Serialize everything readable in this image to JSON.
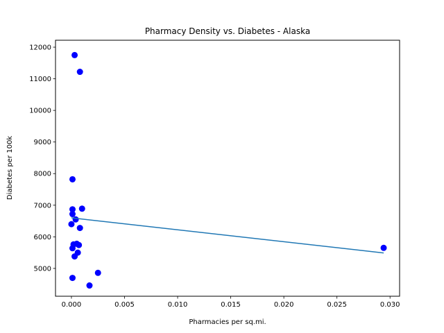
{
  "chart_data": {
    "type": "scatter",
    "title": "Pharmacy Density vs. Diabetes - Alaska",
    "xlabel": "Pharmacies per sq.mi.",
    "ylabel": "Diabetes per 100k",
    "xlim": [
      -0.0015,
      0.0309
    ],
    "ylim": [
      4120,
      12220
    ],
    "xticks": [
      0.0,
      0.005,
      0.01,
      0.015,
      0.02,
      0.025,
      0.03
    ],
    "xtick_labels": [
      "0.000",
      "0.005",
      "0.010",
      "0.015",
      "0.020",
      "0.025",
      "0.030"
    ],
    "yticks": [
      5000,
      6000,
      7000,
      8000,
      9000,
      10000,
      11000,
      12000
    ],
    "ytick_labels": [
      "5000",
      "6000",
      "7000",
      "8000",
      "9000",
      "10000",
      "11000",
      "12000"
    ],
    "grid": false,
    "series": [
      {
        "kind": "scatter",
        "color": "#0000ff",
        "points": [
          {
            "x": 0.0003,
            "y": 11750
          },
          {
            "x": 0.0008,
            "y": 11220
          },
          {
            "x": 0.0001,
            "y": 7820
          },
          {
            "x": 0.0001,
            "y": 6870
          },
          {
            "x": 0.001,
            "y": 6890
          },
          {
            "x": 0.0001,
            "y": 6720
          },
          {
            "x": 0.0004,
            "y": 6550
          },
          {
            "x": 0.0,
            "y": 6400
          },
          {
            "x": 0.0008,
            "y": 6280
          },
          {
            "x": 0.0002,
            "y": 5760
          },
          {
            "x": 0.0005,
            "y": 5780
          },
          {
            "x": 0.0007,
            "y": 5740
          },
          {
            "x": 0.0001,
            "y": 5640
          },
          {
            "x": 0.0006,
            "y": 5500
          },
          {
            "x": 0.0003,
            "y": 5380
          },
          {
            "x": 0.0025,
            "y": 4860
          },
          {
            "x": 0.0001,
            "y": 4700
          },
          {
            "x": 0.0017,
            "y": 4460
          },
          {
            "x": 0.0294,
            "y": 5650
          }
        ]
      },
      {
        "kind": "line",
        "color": "#1f77b4",
        "points": [
          {
            "x": 0.0,
            "y": 6600
          },
          {
            "x": 0.0294,
            "y": 5490
          }
        ]
      }
    ]
  }
}
